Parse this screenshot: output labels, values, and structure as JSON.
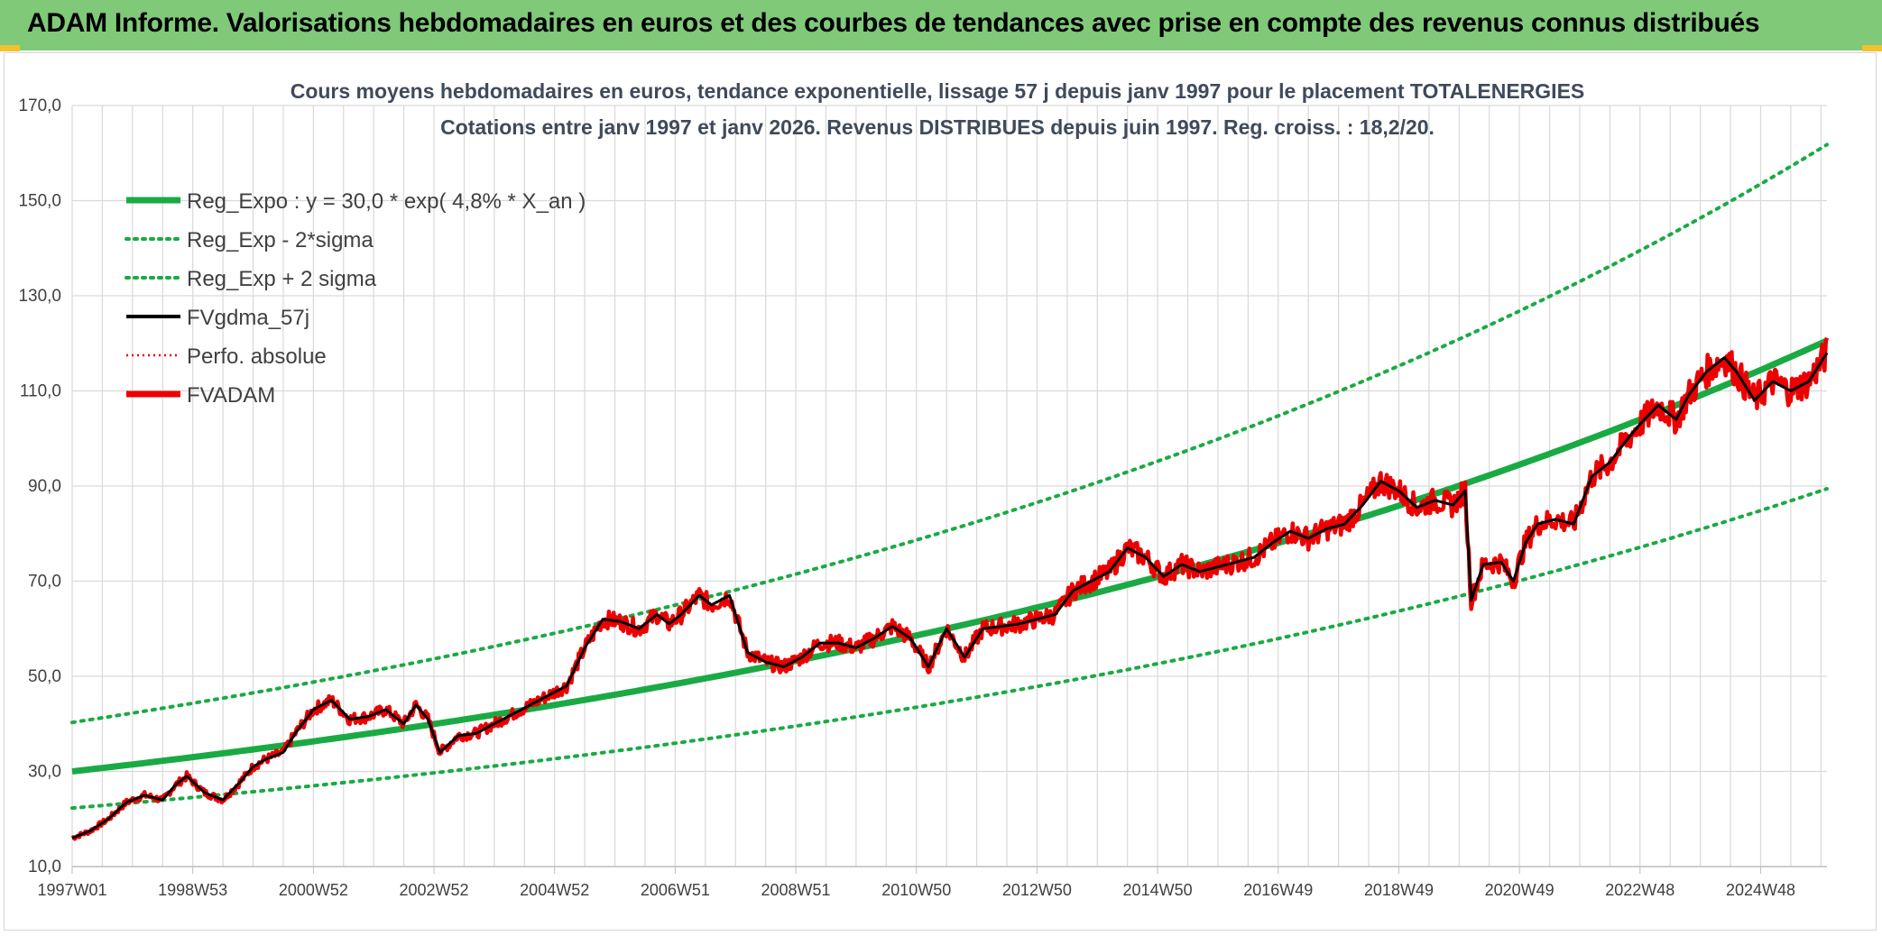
{
  "header": {
    "title": "ADAM Informe. Valorisations hebdomadaires en euros et des courbes de tendances avec prise en compte des revenus connus distribués"
  },
  "colors": {
    "header_bg": "#7fc979",
    "accent": "#f2c230",
    "reg": "#1aaa44",
    "sigma": "#1aaa44",
    "gdma": "#000000",
    "perfo": "#e00000",
    "fvadam": "#ee0000",
    "grid": "#d9d9d9"
  },
  "chart_data": {
    "type": "line",
    "title": "Cours moyens hebdomadaires en euros, tendance exponentielle, lissage 57 j depuis janv 1997 pour le placement TOTALENERGIES",
    "subtitle": "Cotations entre janv 1997 et janv 2026. Revenus DISTRIBUES depuis juin 1997. Reg. croiss. : 18,2/20.",
    "xlabel": "",
    "ylabel": "",
    "ylim": [
      10,
      170
    ],
    "xlim": [
      1997.0,
      2026.1
    ],
    "yticks": [
      "10,0",
      "30,0",
      "50,0",
      "70,0",
      "90,0",
      "110,0",
      "130,0",
      "150,0",
      "170,0"
    ],
    "xticks": [
      "1997W01",
      "1998W53",
      "2000W52",
      "2002W52",
      "2004W52",
      "2006W51",
      "2008W51",
      "2010W50",
      "2012W50",
      "2014W50",
      "2016W49",
      "2018W49",
      "2020W49",
      "2022W48",
      "2024W48"
    ],
    "x_tick_years": [
      1997.0,
      1999.0,
      2001.0,
      2003.0,
      2005.0,
      2007.0,
      2009.0,
      2011.0,
      2013.0,
      2015.0,
      2017.0,
      2019.0,
      2021.0,
      2023.0,
      2025.0
    ],
    "grid": true,
    "legend_position": "top-left",
    "legend": [
      {
        "label": "Reg_Expo : y = 30,0 * exp( 4,8% *  X_an )",
        "style": "solid-thick",
        "color": "#1aaa44"
      },
      {
        "label": "Reg_Exp - 2*sigma",
        "style": "dotted",
        "color": "#1aaa44"
      },
      {
        "label": "Reg_Exp + 2 sigma",
        "style": "dotted",
        "color": "#1aaa44"
      },
      {
        "label": "FVgdma_57j",
        "style": "solid",
        "color": "#000000"
      },
      {
        "label": "Perfo. absolue",
        "style": "dotted-thin",
        "color": "#e00000"
      },
      {
        "label": "FVADAM",
        "style": "solid-thick",
        "color": "#ee0000"
      }
    ],
    "series": [
      {
        "name": "Reg_Expo : y = 30,0 * exp( 4,8% *  X_an )",
        "x": [
          1997,
          2001,
          2005,
          2009,
          2013,
          2017,
          2021,
          2026
        ],
        "values": [
          30,
          36,
          43,
          53,
          65,
          79,
          96,
          120
        ]
      },
      {
        "name": "Reg_Exp - 2*sigma",
        "x": [
          1997,
          2001,
          2005,
          2009,
          2013,
          2017,
          2021,
          2026
        ],
        "values": [
          22.3,
          26.8,
          32.2,
          39.3,
          48.3,
          58.7,
          71.4,
          89
        ]
      },
      {
        "name": "Reg_Exp + 2 sigma",
        "x": [
          1997,
          2001,
          2005,
          2009,
          2013,
          2017,
          2021,
          2026
        ],
        "values": [
          40.3,
          48.4,
          57.8,
          71.2,
          87.3,
          106.1,
          129,
          161
        ]
      },
      {
        "name": "FVADAM",
        "x": [
          1997.0,
          1997.3,
          1997.6,
          1997.9,
          1998.2,
          1998.5,
          1998.7,
          1998.9,
          1999.2,
          1999.5,
          1999.8,
          2000.0,
          2000.2,
          2000.5,
          2000.7,
          2001.0,
          2001.3,
          2001.6,
          2001.9,
          2002.2,
          2002.5,
          2002.7,
          2002.9,
          2003.1,
          2003.4,
          2003.7,
          2004.0,
          2004.3,
          2004.6,
          2004.9,
          2005.2,
          2005.5,
          2005.8,
          2006.1,
          2006.4,
          2006.7,
          2006.9,
          2007.1,
          2007.4,
          2007.6,
          2007.9,
          2008.2,
          2008.5,
          2008.8,
          2009.1,
          2009.4,
          2009.7,
          2010.0,
          2010.3,
          2010.6,
          2010.9,
          2011.2,
          2011.5,
          2011.8,
          2012.1,
          2012.4,
          2012.7,
          2013.0,
          2013.3,
          2013.6,
          2013.9,
          2014.2,
          2014.5,
          2014.8,
          2015.1,
          2015.4,
          2015.7,
          2016.0,
          2016.3,
          2016.6,
          2016.9,
          2017.2,
          2017.5,
          2017.8,
          2018.1,
          2018.4,
          2018.7,
          2019.0,
          2019.3,
          2019.6,
          2019.9,
          2020.1,
          2020.2,
          2020.4,
          2020.7,
          2020.9,
          2021.1,
          2021.3,
          2021.6,
          2021.9,
          2022.2,
          2022.5,
          2022.8,
          2023.0,
          2023.3,
          2023.6,
          2023.8,
          2024.1,
          2024.4,
          2024.6,
          2024.9,
          2025.2,
          2025.5,
          2025.8,
          2026.1
        ],
        "values": [
          16,
          17.5,
          20,
          23.5,
          25,
          24,
          27,
          29,
          25.5,
          24,
          28,
          31,
          32.5,
          34,
          38,
          43,
          45,
          41,
          41.5,
          43,
          40,
          44,
          41,
          34,
          37.5,
          38,
          40,
          42,
          44,
          46,
          48,
          56,
          62,
          61.5,
          60,
          63,
          61,
          63,
          67,
          65,
          67,
          55,
          53,
          52,
          54,
          57,
          57,
          56,
          58,
          60.5,
          58,
          52,
          60,
          54,
          60,
          60.5,
          61,
          62,
          63,
          68,
          70,
          72,
          77,
          75,
          71,
          73.5,
          72,
          73,
          74,
          75,
          78,
          80.5,
          79,
          81,
          82,
          86,
          91,
          89,
          85.5,
          87,
          86,
          89,
          66,
          73.5,
          74,
          70,
          78,
          82,
          83,
          82,
          92,
          95,
          100,
          103,
          107,
          104,
          109,
          114,
          117,
          114,
          108,
          112,
          110,
          112,
          118
        ]
      }
    ]
  }
}
